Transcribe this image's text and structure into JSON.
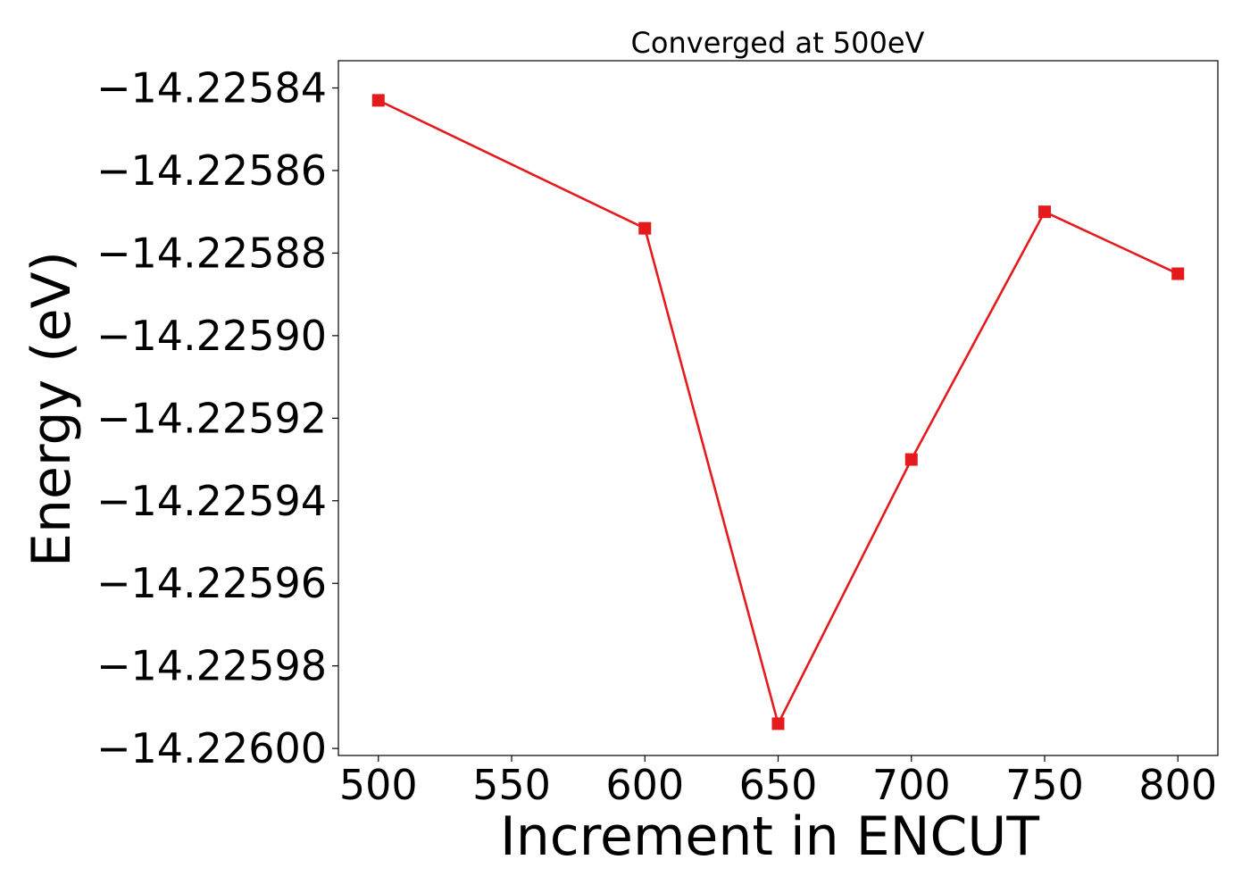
{
  "chart_data": {
    "type": "line",
    "title": "Converged at 500eV",
    "xlabel": "Increment in ENCUT",
    "ylabel": "Energy (eV)",
    "x": [
      500,
      600,
      650,
      700,
      750,
      800
    ],
    "series": [
      {
        "values": [
          -14.225843,
          -14.225874,
          -14.225994,
          -14.22593,
          -14.22587,
          -14.225885
        ],
        "color": "#e41a1c",
        "marker": "square"
      }
    ],
    "xlim": [
      485,
      815
    ],
    "ylim": [
      -14.2260017,
      -14.2258334
    ],
    "xticks": [
      500,
      550,
      600,
      650,
      700,
      750,
      800
    ],
    "xtick_labels": [
      "500",
      "550",
      "600",
      "650",
      "700",
      "750",
      "800"
    ],
    "yticks": [
      -14.22584,
      -14.22586,
      -14.22588,
      -14.2259,
      -14.22592,
      -14.22594,
      -14.22596,
      -14.22598,
      -14.226
    ],
    "ytick_labels": [
      "−14.22584",
      "−14.22586",
      "−14.22588",
      "−14.22590",
      "−14.22592",
      "−14.22594",
      "−14.22596",
      "−14.22598",
      "−14.22600"
    ],
    "grid": false,
    "legend": "none"
  }
}
